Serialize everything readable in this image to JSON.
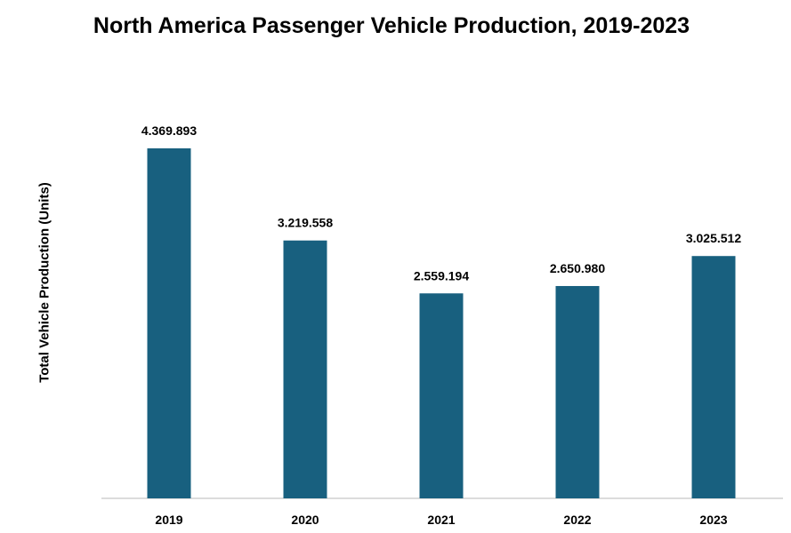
{
  "chart_data": {
    "type": "bar",
    "title": "North America Passenger Vehicle Production, 2019-2023",
    "xlabel": "",
    "ylabel": "Total Vehicle Production (Units)",
    "categories": [
      "2019",
      "2020",
      "2021",
      "2022",
      "2023"
    ],
    "values": [
      4369893,
      3219558,
      2559194,
      2650980,
      3025512
    ],
    "data_labels": [
      "4.369.893",
      "3.219.558",
      "2.559.194",
      "2.650.980",
      "3.025.512"
    ],
    "grid": false,
    "legend": "none",
    "bar_color": "#18607f"
  }
}
